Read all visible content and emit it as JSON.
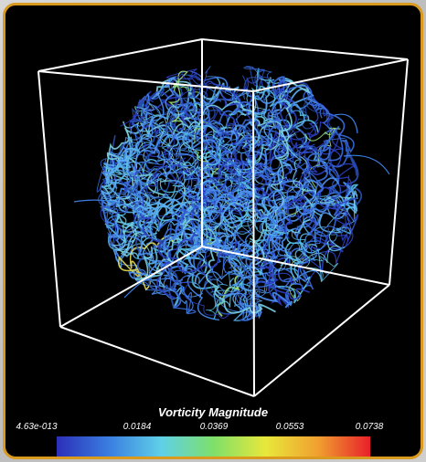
{
  "legend": {
    "title": "Vorticity Magnitude",
    "ticks": [
      "4.63e-013",
      "0.0184",
      "0.0369",
      "0.0553",
      "0.0738"
    ],
    "colors": [
      "#2b2fb8",
      "#3a7ee0",
      "#5fd0e8",
      "#7ee06a",
      "#e8e83a",
      "#f0a030",
      "#e8202a"
    ]
  },
  "colors": {
    "frame_border": "#d99a1e",
    "background": "#000000",
    "cube_edges": "#ffffff"
  }
}
